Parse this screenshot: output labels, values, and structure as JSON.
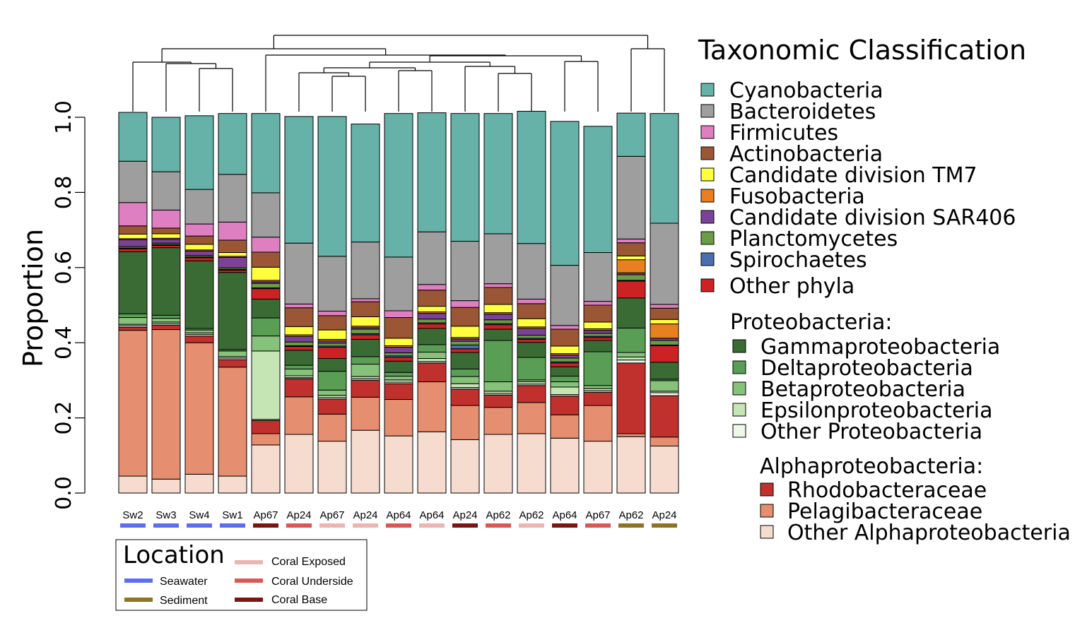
{
  "chart_data": {
    "type": "bar",
    "stacked": true,
    "ylabel": "Proportion",
    "ylim": [
      0,
      1
    ],
    "yticks": [
      "0.0",
      "0.2",
      "0.4",
      "0.6",
      "0.8",
      "1.0"
    ],
    "categories": [
      "Sw2",
      "Sw3",
      "Sw4",
      "Sw1",
      "Ap67",
      "Ap24",
      "Ap67",
      "Ap24",
      "Ap64",
      "Ap64",
      "Ap24",
      "Ap62",
      "Ap62",
      "Ap64",
      "Ap67",
      "Ap62",
      "Ap24"
    ],
    "locations": [
      "Seawater",
      "Seawater",
      "Seawater",
      "Seawater",
      "Coral Base",
      "Coral Underside",
      "Coral Exposed",
      "Coral Exposed",
      "Coral Underside",
      "Coral Exposed",
      "Coral Base",
      "Coral Underside",
      "Coral Exposed",
      "Coral Base",
      "Coral Underside",
      "Sediment",
      "Sediment"
    ],
    "stack_order": [
      "Other Alphaproteobacteria",
      "Pelagibacteraceae",
      "Rhodobacteraceae",
      "Other Proteobacteria",
      "Epsilonproteobacteria",
      "Betaproteobacteria",
      "Deltaproteobacteria",
      "Gammaproteobacteria",
      "Other phyla",
      "Spirochaetes",
      "Planctomycetes",
      "Candidate division SAR406",
      "Fusobacteria",
      "Candidate division TM7",
      "Actinobacteria",
      "Firmicutes",
      "Bacteroidetes",
      "Cyanobacteria"
    ],
    "series": [
      {
        "name": "Other Alphaproteobacteria",
        "values": [
          0.045,
          0.037,
          0.05,
          0.045,
          0.128,
          0.156,
          0.138,
          0.167,
          0.152,
          0.163,
          0.142,
          0.156,
          0.158,
          0.146,
          0.138,
          0.15,
          0.125
        ]
      },
      {
        "name": "Pelagibacteraceae",
        "values": [
          0.388,
          0.398,
          0.35,
          0.29,
          0.03,
          0.1,
          0.072,
          0.088,
          0.097,
          0.133,
          0.091,
          0.072,
          0.083,
          0.062,
          0.095,
          0.008,
          0.024
        ]
      },
      {
        "name": "Rhodobacteraceae",
        "values": [
          0.008,
          0.012,
          0.018,
          0.02,
          0.035,
          0.048,
          0.04,
          0.045,
          0.042,
          0.05,
          0.044,
          0.033,
          0.045,
          0.05,
          0.035,
          0.188,
          0.11
        ]
      },
      {
        "name": "Other Proteobacteria",
        "values": [
          0.004,
          0.004,
          0.004,
          0.004,
          0.003,
          0.003,
          0.004,
          0.004,
          0.004,
          0.004,
          0.004,
          0.004,
          0.004,
          0.004,
          0.004,
          0.008,
          0.008
        ]
      },
      {
        "name": "Epsilonproteobacteria",
        "values": [
          0.004,
          0.004,
          0.004,
          0.004,
          0.182,
          0.005,
          0.006,
          0.006,
          0.006,
          0.008,
          0.01,
          0.006,
          0.006,
          0.02,
          0.006,
          0.008,
          0.004
        ]
      },
      {
        "name": "Betaproteobacteria",
        "values": [
          0.018,
          0.01,
          0.008,
          0.015,
          0.04,
          0.018,
          0.014,
          0.033,
          0.01,
          0.017,
          0.019,
          0.025,
          0.005,
          0.014,
          0.008,
          0.012,
          0.028
        ]
      },
      {
        "name": "Deltaproteobacteria",
        "values": [
          0.01,
          0.008,
          0.004,
          0.004,
          0.048,
          0.01,
          0.05,
          0.02,
          0.01,
          0.02,
          0.02,
          0.11,
          0.06,
          0.015,
          0.09,
          0.065,
          0.004
        ]
      },
      {
        "name": "Gammaproteobacteria",
        "values": [
          0.165,
          0.18,
          0.18,
          0.205,
          0.05,
          0.04,
          0.034,
          0.046,
          0.03,
          0.043,
          0.044,
          0.03,
          0.04,
          0.025,
          0.03,
          0.08,
          0.045
        ]
      },
      {
        "name": "Other phyla",
        "values": [
          0.008,
          0.006,
          0.008,
          0.006,
          0.028,
          0.01,
          0.03,
          0.012,
          0.01,
          0.012,
          0.01,
          0.012,
          0.008,
          0.01,
          0.008,
          0.045,
          0.044
        ]
      },
      {
        "name": "Spirochaetes",
        "values": [
          0.002,
          0.002,
          0.002,
          0.002,
          0.002,
          0.002,
          0.003,
          0.003,
          0.004,
          0.003,
          0.01,
          0.003,
          0.003,
          0.003,
          0.003,
          0.002,
          0.002
        ]
      },
      {
        "name": "Planctomycetes",
        "values": [
          0.004,
          0.004,
          0.004,
          0.004,
          0.012,
          0.01,
          0.008,
          0.012,
          0.008,
          0.01,
          0.01,
          0.01,
          0.008,
          0.01,
          0.008,
          0.015,
          0.012
        ]
      },
      {
        "name": "Candidate division SAR406",
        "values": [
          0.018,
          0.01,
          0.012,
          0.028,
          0.004,
          0.015,
          0.006,
          0.004,
          0.015,
          0.015,
          0.006,
          0.015,
          0.018,
          0.008,
          0.008,
          0.005,
          0.006
        ]
      },
      {
        "name": "Fusobacteria",
        "values": [
          0.003,
          0.003,
          0.003,
          0.003,
          0.004,
          0.004,
          0.004,
          0.004,
          0.004,
          0.004,
          0.004,
          0.004,
          0.004,
          0.004,
          0.004,
          0.035,
          0.038
        ]
      },
      {
        "name": "Candidate division TM7",
        "values": [
          0.012,
          0.012,
          0.015,
          0.01,
          0.035,
          0.022,
          0.025,
          0.025,
          0.02,
          0.015,
          0.03,
          0.022,
          0.022,
          0.02,
          0.018,
          0.01,
          0.012
        ]
      },
      {
        "name": "Actinobacteria",
        "values": [
          0.022,
          0.015,
          0.022,
          0.033,
          0.04,
          0.05,
          0.038,
          0.04,
          0.055,
          0.043,
          0.05,
          0.045,
          0.04,
          0.045,
          0.045,
          0.035,
          0.03
        ]
      },
      {
        "name": "Firmicutes",
        "values": [
          0.062,
          0.048,
          0.032,
          0.048,
          0.04,
          0.01,
          0.012,
          0.008,
          0.018,
          0.015,
          0.018,
          0.01,
          0.012,
          0.01,
          0.01,
          0.01,
          0.01
        ]
      },
      {
        "name": "Bacteroidetes",
        "values": [
          0.11,
          0.102,
          0.092,
          0.127,
          0.118,
          0.162,
          0.146,
          0.151,
          0.143,
          0.14,
          0.158,
          0.133,
          0.148,
          0.16,
          0.13,
          0.22,
          0.216
        ]
      },
      {
        "name": "Cyanobacteria",
        "values": [
          0.13,
          0.145,
          0.196,
          0.162,
          0.211,
          0.337,
          0.372,
          0.314,
          0.382,
          0.317,
          0.34,
          0.32,
          0.352,
          0.383,
          0.336,
          0.115,
          0.292
        ]
      }
    ],
    "colors": {
      "Cyanobacteria": "#66b2a8",
      "Bacteroidetes": "#9e9e9e",
      "Firmicutes": "#de7fc1",
      "Actinobacteria": "#9b5735",
      "Candidate division TM7": "#ffff3e",
      "Fusobacteria": "#e8801f",
      "Candidate division SAR406": "#7c4297",
      "Planctomycetes": "#6b9d44",
      "Spirochaetes": "#4a6fb0",
      "Other phyla": "#cc2223",
      "Gammaproteobacteria": "#3b6b35",
      "Deltaproteobacteria": "#5a9e55",
      "Betaproteobacteria": "#86c279",
      "Epsilonproteobacteria": "#c6e5b5",
      "Other Proteobacteria": "#eef7e8",
      "Rhodobacteraceae": "#c0312e",
      "Pelagibacteraceae": "#e58e70",
      "Other Alphaproteobacteria": "#f6dccf"
    },
    "location_colors": {
      "Seawater": "#5c6ef0",
      "Sediment": "#8c7424",
      "Coral Exposed": "#ecb5b2",
      "Coral Underside": "#db5754",
      "Coral Base": "#7a1512"
    },
    "dendrogram_order": [
      [
        "Sw2",
        "Sw3",
        "Sw4",
        "Sw1"
      ],
      [
        "Ap67",
        "Ap24",
        "Ap67",
        "Ap24",
        "Ap64",
        "Ap64",
        "Ap24",
        "Ap62",
        "Ap62",
        "Ap64",
        "Ap67"
      ],
      [
        "Ap62",
        "Ap24"
      ]
    ]
  },
  "legend": {
    "title": "Taxonomic Classification",
    "phyla": [
      "Cyanobacteria",
      "Bacteroidetes",
      "Firmicutes",
      "Actinobacteria",
      "Candidate division TM7",
      "Fusobacteria",
      "Candidate division SAR406",
      "Planctomycetes",
      "Spirochaetes",
      "Other phyla"
    ],
    "proteo_title": "Proteobacteria:",
    "proteo": [
      "Gammaproteobacteria",
      "Deltaproteobacteria",
      "Betaproteobacteria",
      "Epsilonproteobacteria",
      "Other Proteobacteria"
    ],
    "alpha_title": "Alphaproteobacteria:",
    "alpha": [
      "Rhodobacteraceae",
      "Pelagibacteraceae",
      "Other Alphaproteobacteria"
    ]
  },
  "location_legend": {
    "title": "Location",
    "items": [
      "Seawater",
      "Sediment",
      "Coral Exposed",
      "Coral Underside",
      "Coral Base"
    ]
  }
}
